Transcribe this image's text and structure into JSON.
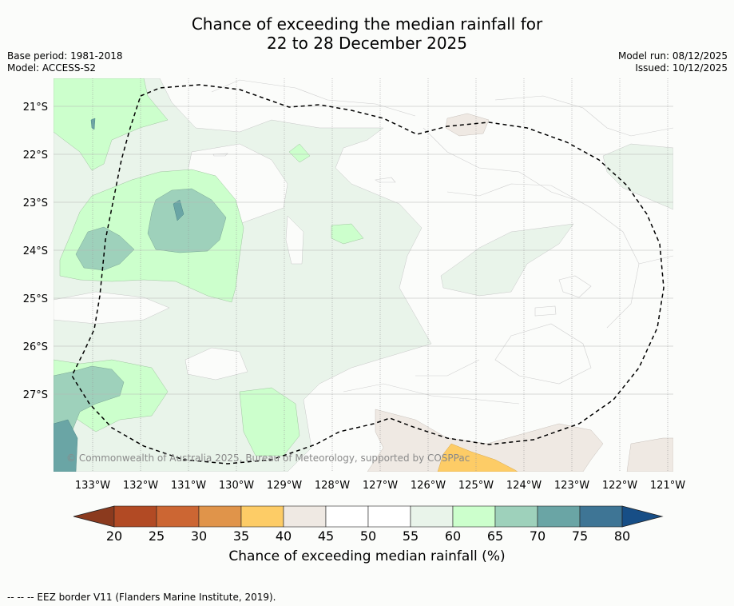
{
  "title": {
    "line1": "Chance of exceeding the median rainfall for",
    "line2": "22 to 28 December 2025"
  },
  "meta": {
    "base_period": "Base period: 1981-2018",
    "model": "Model: ACCESS-S2",
    "model_run": "Model run: 08/12/2025",
    "issued": "Issued: 10/12/2025"
  },
  "map": {
    "lat_labels": [
      "21°S",
      "22°S",
      "23°S",
      "24°S",
      "25°S",
      "26°S",
      "27°S"
    ],
    "lon_labels": [
      "133°W",
      "132°W",
      "131°W",
      "130°W",
      "129°W",
      "128°W",
      "127°W",
      "126°W",
      "125°W",
      "124°W",
      "123°W",
      "122°W",
      "121°W"
    ],
    "credit": "© Commonwealth of Australia 2025, Bureau of Meteorology, supported by COSPPac",
    "eez_border": "EEZ border V11"
  },
  "colorbar": {
    "ticks": [
      "20",
      "25",
      "30",
      "35",
      "40",
      "45",
      "50",
      "55",
      "60",
      "65",
      "70",
      "75",
      "80"
    ],
    "colors": [
      "#8b3a1e",
      "#b24a24",
      "#cc6633",
      "#e0944a",
      "#fdcc66",
      "#efe9e3",
      "#ffffff",
      "#ffffff",
      "#e9f4ea",
      "#ccffcc",
      "#9ed1bb",
      "#6aa5a5",
      "#3e7595",
      "#174e86"
    ],
    "label": "Chance of exceeding median rainfall (%)"
  },
  "footnote": "--  --  -- EEZ border V11 (Flanders Marine Institute, 2019)."
}
